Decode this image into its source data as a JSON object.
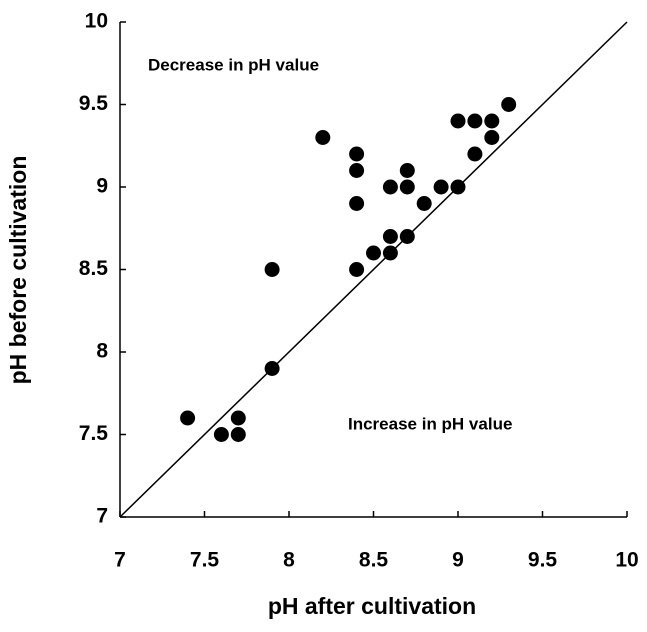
{
  "chart_data": {
    "type": "scatter",
    "x_label": "pH after cultivation",
    "y_label": "pH before cultivation",
    "annotations": [
      "Decrease in pH value",
      "Increase in pH value"
    ],
    "xlim": [
      7,
      10
    ],
    "ylim": [
      7,
      10
    ],
    "xticks": [
      7,
      7.5,
      8,
      8.5,
      9,
      9.5,
      10
    ],
    "yticks": [
      7,
      7.5,
      8,
      8.5,
      9,
      9.5,
      10
    ],
    "color": "#000000",
    "x": [
      7.4,
      7.6,
      7.7,
      7.7,
      7.9,
      7.9,
      8.2,
      8.4,
      8.4,
      8.4,
      8.4,
      8.5,
      8.6,
      8.6,
      8.6,
      8.7,
      8.7,
      8.7,
      8.8,
      8.9,
      9.0,
      9.0,
      9.1,
      9.1,
      9.2,
      9.2,
      9.3
    ],
    "y": [
      7.6,
      7.5,
      7.6,
      7.5,
      7.9,
      8.5,
      9.3,
      9.2,
      9.1,
      8.9,
      8.5,
      8.6,
      8.6,
      8.7,
      9.0,
      9.0,
      9.1,
      8.7,
      8.9,
      9.0,
      9.0,
      9.4,
      9.4,
      9.2,
      9.4,
      9.3,
      9.5
    ]
  }
}
